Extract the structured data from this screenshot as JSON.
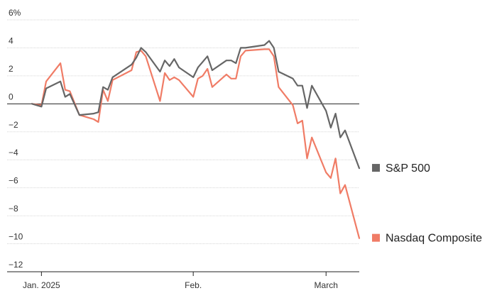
{
  "chart_data": {
    "type": "line",
    "y_unit_suffix": "%",
    "ylim": [
      -12,
      6
    ],
    "y_ticks": [
      6,
      4,
      2,
      0,
      -2,
      -4,
      -6,
      -8,
      -10,
      -12
    ],
    "x_tick_labels": [
      {
        "label": "Jan. 2025",
        "date": "2025-01-02"
      },
      {
        "label": "Feb.",
        "date": "2025-02-03"
      },
      {
        "label": "March",
        "date": "2025-03-03"
      }
    ],
    "grid": true,
    "legend_placement": "right",
    "x": [
      "2024-12-31",
      "2025-01-02",
      "2025-01-03",
      "2025-01-06",
      "2025-01-07",
      "2025-01-08",
      "2025-01-10",
      "2025-01-13",
      "2025-01-14",
      "2025-01-15",
      "2025-01-16",
      "2025-01-17",
      "2025-01-21",
      "2025-01-22",
      "2025-01-23",
      "2025-01-24",
      "2025-01-27",
      "2025-01-28",
      "2025-01-29",
      "2025-01-30",
      "2025-01-31",
      "2025-02-03",
      "2025-02-04",
      "2025-02-05",
      "2025-02-06",
      "2025-02-07",
      "2025-02-10",
      "2025-02-11",
      "2025-02-12",
      "2025-02-13",
      "2025-02-14",
      "2025-02-18",
      "2025-02-19",
      "2025-02-20",
      "2025-02-21",
      "2025-02-24",
      "2025-02-25",
      "2025-02-26",
      "2025-02-27",
      "2025-02-28",
      "2025-03-03",
      "2025-03-04",
      "2025-03-05",
      "2025-03-06",
      "2025-03-07",
      "2025-03-10"
    ],
    "series": [
      {
        "name": "S&P 500",
        "color": "#666666",
        "values": [
          0,
          -0.2,
          1.1,
          1.6,
          0.5,
          0.7,
          -0.8,
          -0.7,
          -0.6,
          1.2,
          1.0,
          1.9,
          2.8,
          3.3,
          4.0,
          3.7,
          2.3,
          3.1,
          2.7,
          3.2,
          2.6,
          1.9,
          2.6,
          3.0,
          3.4,
          2.4,
          3.1,
          3.1,
          2.9,
          4.0,
          4.0,
          4.2,
          4.5,
          4.0,
          2.3,
          1.8,
          1.3,
          1.3,
          -0.3,
          1.3,
          -0.5,
          -1.7,
          -0.7,
          -2.4,
          -1.9,
          -4.6
        ]
      },
      {
        "name": "Nasdaq Composite",
        "color": "#F07C66",
        "values": [
          0,
          -0.1,
          1.6,
          2.9,
          1.0,
          0.9,
          -0.8,
          -1.1,
          -1.3,
          1.0,
          0.2,
          1.7,
          2.4,
          3.7,
          3.8,
          3.4,
          0.2,
          2.2,
          1.7,
          1.9,
          1.7,
          0.5,
          1.8,
          2.0,
          2.5,
          1.2,
          2.1,
          1.8,
          1.8,
          3.4,
          3.8,
          3.9,
          3.9,
          3.4,
          1.2,
          -0.1,
          -1.4,
          -1.2,
          -3.9,
          -2.4,
          -4.9,
          -5.3,
          -3.9,
          -6.4,
          -5.8,
          -9.6
        ]
      }
    ]
  }
}
